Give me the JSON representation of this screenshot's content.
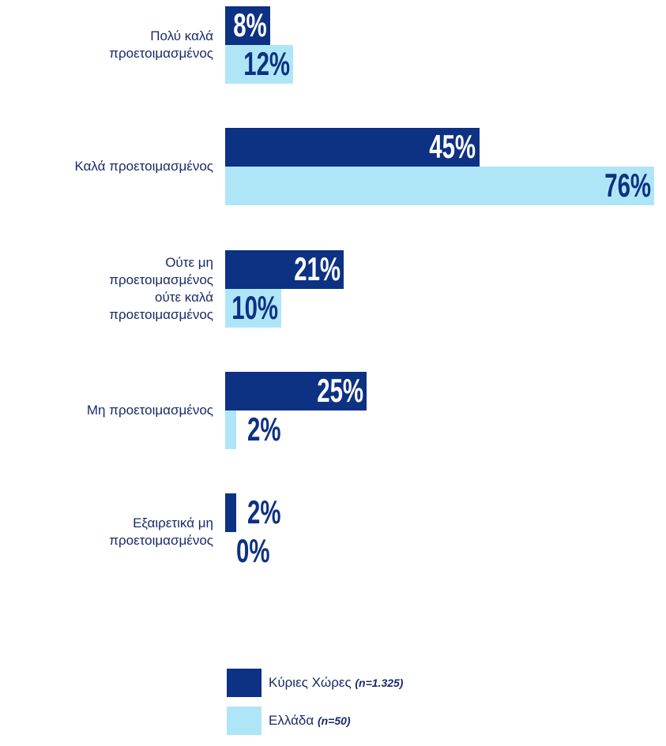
{
  "chart_data": {
    "type": "barh",
    "categories": [
      "Πολύ καλά\nπροετοιμασμένος",
      "Καλά προετοιμασμένος",
      "Ούτε μη\nπροετοιμασμένος\nούτε καλά\nπροετοιμασμένος",
      "Μη προετοιμασμένος",
      "Εξαιρετικά μη\nπροετοιμασμένος"
    ],
    "series": [
      {
        "name": "Κύριες Χώρες",
        "n_label": "(n=1.325)",
        "color": "#0d3183",
        "label_color": "#ffffff",
        "values": [
          8,
          45,
          21,
          25,
          2
        ],
        "value_labels": [
          "8%",
          "45%",
          "21%",
          "25%",
          "2%"
        ]
      },
      {
        "name": "Ελλάδα",
        "n_label": "(n=50)",
        "color": "#aee6f8",
        "label_color": "#0d3183",
        "values": [
          12,
          76,
          10,
          2,
          0
        ],
        "value_labels": [
          "12%",
          "76%",
          "10%",
          "2%",
          "0%"
        ]
      }
    ]
  }
}
